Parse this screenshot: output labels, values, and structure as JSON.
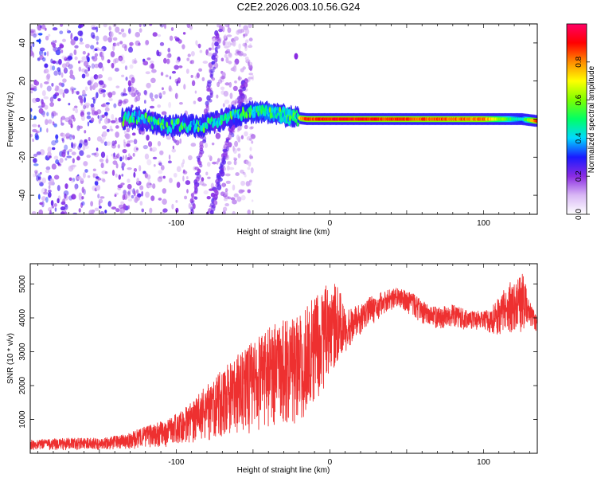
{
  "figure": {
    "title": "C2E2.2026.003.10.56.G24"
  },
  "chart_data": [
    {
      "type": "heatmap",
      "name": "spectrogram",
      "xlabel": "Height of straight line (km)",
      "ylabel": "Frequency (Hz)",
      "xlim": [
        -195,
        135
      ],
      "ylim": [
        -50,
        50
      ],
      "xticks": [
        -100,
        0,
        100
      ],
      "yticks": [
        -40,
        -20,
        0,
        20,
        40
      ],
      "colorbar": {
        "label": "Normalized spectral amplitude",
        "range": [
          0,
          1
        ],
        "ticks": [
          0.0,
          0.2,
          0.4,
          0.6,
          0.8
        ],
        "tick_labels": [
          "0.0",
          "0.2",
          "0.4",
          "0.6",
          "0.8"
        ],
        "colormap_stops": [
          "#ffffff",
          "#d9b8f5",
          "#8a2be2",
          "#1a1aff",
          "#00d9ff",
          "#00ff66",
          "#7cff00",
          "#ffff00",
          "#ff8c00",
          "#ff0000",
          "#ff0066"
        ]
      },
      "main_trace": {
        "description_free": true,
        "points": [
          [
            -135,
            0
          ],
          [
            -125,
            1
          ],
          [
            -115,
            -2
          ],
          [
            -105,
            -4
          ],
          [
            -95,
            -3
          ],
          [
            -85,
            -4
          ],
          [
            -75,
            -2
          ],
          [
            -65,
            1
          ],
          [
            -55,
            3
          ],
          [
            -45,
            4
          ],
          [
            -35,
            3
          ],
          [
            -25,
            1
          ],
          [
            -15,
            0
          ],
          [
            0,
            0
          ],
          [
            20,
            0
          ],
          [
            60,
            0
          ],
          [
            100,
            0
          ],
          [
            125,
            0
          ],
          [
            135,
            -1
          ]
        ],
        "intensity": [
          0.25,
          0.3,
          0.35,
          0.35,
          0.35,
          0.4,
          0.3,
          0.35,
          0.4,
          0.45,
          0.5,
          0.6,
          0.85,
          0.9,
          0.9,
          0.85,
          0.8,
          0.4,
          0.9
        ]
      },
      "streaks": [
        {
          "x_top": -72,
          "x_bottom": -90,
          "y_top": 48,
          "y_bottom": -50
        },
        {
          "x_top": -55,
          "x_bottom": -78,
          "y_top": 20,
          "y_bottom": -50
        }
      ],
      "isolated_feature": {
        "x": -22,
        "y": 33
      }
    },
    {
      "type": "line",
      "name": "snr",
      "xlabel": "Height of straight line (km)",
      "ylabel": "SNR (10 * v/v)",
      "xlim": [
        -195,
        135
      ],
      "ylim": [
        0,
        5600
      ],
      "xticks": [
        -100,
        0,
        100
      ],
      "yticks": [
        1000,
        2000,
        3000,
        4000,
        5000
      ],
      "color": "#ee3030",
      "envelope": {
        "x": [
          -195,
          -170,
          -150,
          -135,
          -120,
          -105,
          -90,
          -75,
          -60,
          -45,
          -35,
          -25,
          -18,
          -10,
          -5,
          0,
          5,
          10,
          15,
          25,
          35,
          45,
          55,
          60,
          70,
          80,
          90,
          100,
          105,
          110,
          115,
          120,
          125,
          130,
          135
        ],
        "low": [
          100,
          100,
          100,
          120,
          150,
          200,
          300,
          400,
          500,
          600,
          650,
          700,
          1000,
          1500,
          1800,
          2200,
          2700,
          3000,
          3300,
          3700,
          4100,
          4300,
          4000,
          3800,
          3700,
          3700,
          3600,
          3700,
          3500,
          3500,
          3700,
          3400,
          3600,
          3800,
          3500
        ],
        "high": [
          400,
          450,
          450,
          550,
          800,
          1000,
          1500,
          2300,
          2900,
          3500,
          3900,
          4000,
          4100,
          4700,
          4900,
          5000,
          5100,
          4200,
          4300,
          4600,
          4800,
          4900,
          4700,
          4500,
          4300,
          4400,
          4200,
          4200,
          4300,
          4600,
          5000,
          5100,
          5500,
          4500,
          4000
        ]
      }
    }
  ]
}
